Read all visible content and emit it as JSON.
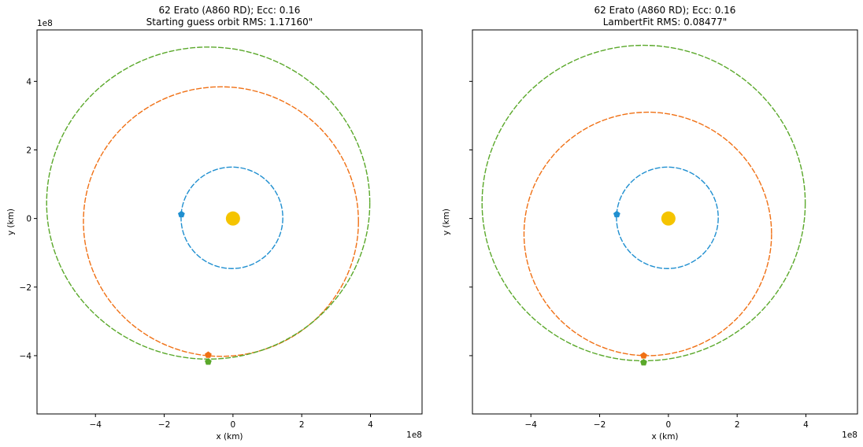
{
  "chart_data": [
    {
      "type": "scatter",
      "title_line1": "62 Erato (A860 RD); Ecc: 0.16",
      "title_line2": "Starting guess orbit RMS: 1.17160\"",
      "xlabel": "x (km)",
      "ylabel": "y (km)",
      "x_multiplier": "1e8",
      "y_multiplier": "1e8",
      "xlim": [
        -5.7,
        5.5
      ],
      "ylim": [
        -5.7,
        5.5
      ],
      "x_ticks": [
        -4,
        -2,
        0,
        2,
        4
      ],
      "y_ticks": [
        -4,
        -2,
        0,
        2,
        4
      ],
      "x_tick_labels": [
        "−4",
        "−2",
        "0",
        "2",
        "4"
      ],
      "y_tick_labels": [
        "−4",
        "−2",
        "0",
        "2",
        "4"
      ],
      "orbits": [
        {
          "cx": -0.03,
          "cy": 0.02,
          "rx": 1.48,
          "ry": 1.48,
          "color": "#1f8fd0"
        },
        {
          "cx": -0.35,
          "cy": -0.09,
          "rx": 4.0,
          "ry": 3.93,
          "color": "#f07014"
        },
        {
          "cx": -0.72,
          "cy": 0.45,
          "rx": 4.7,
          "ry": 4.55,
          "color": "#5aa82a"
        }
      ],
      "markers": [
        {
          "x": -1.5,
          "y": 0.12,
          "color": "#1f8fd0",
          "shape": "pentagon"
        },
        {
          "x": -0.72,
          "y": -3.98,
          "color": "#f07014",
          "shape": "pentagon"
        },
        {
          "x": -0.72,
          "y": -4.18,
          "color": "#5aa82a",
          "shape": "pentagon"
        }
      ],
      "sun": {
        "x": 0,
        "y": 0,
        "color": "#f5c400"
      }
    },
    {
      "type": "scatter",
      "title_line1": "62 Erato (A860 RD); Ecc: 0.16",
      "title_line2": "LambertFit RMS: 0.08477\"",
      "xlabel": "x (km)",
      "ylabel": "y (km)",
      "x_multiplier": "1e8",
      "y_multiplier": "",
      "xlim": [
        -5.7,
        5.5
      ],
      "ylim": [
        -5.7,
        5.5
      ],
      "x_ticks": [
        -4,
        -2,
        0,
        2,
        4
      ],
      "y_ticks": [
        -4,
        -2,
        0,
        2,
        4
      ],
      "x_tick_labels": [
        "−4",
        "−2",
        "0",
        "2",
        "4"
      ],
      "y_tick_labels": [],
      "orbits": [
        {
          "cx": -0.03,
          "cy": 0.02,
          "rx": 1.48,
          "ry": 1.48,
          "color": "#1f8fd0"
        },
        {
          "cx": -0.6,
          "cy": -0.45,
          "rx": 3.6,
          "ry": 3.55,
          "color": "#f07014"
        },
        {
          "cx": -0.72,
          "cy": 0.45,
          "rx": 4.7,
          "ry": 4.6,
          "color": "#5aa82a"
        }
      ],
      "markers": [
        {
          "x": -1.5,
          "y": 0.12,
          "color": "#1f8fd0",
          "shape": "pentagon"
        },
        {
          "x": -0.72,
          "y": -4.0,
          "color": "#f07014",
          "shape": "pentagon"
        },
        {
          "x": -0.72,
          "y": -4.2,
          "color": "#5aa82a",
          "shape": "pentagon"
        }
      ],
      "sun": {
        "x": 0,
        "y": 0,
        "color": "#f5c400"
      }
    }
  ]
}
